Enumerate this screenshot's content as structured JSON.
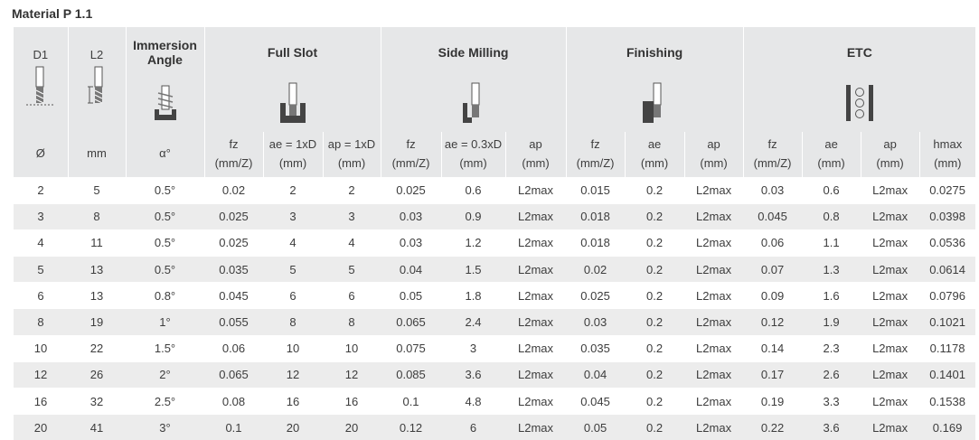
{
  "title": "Material P 1.1",
  "header": {
    "d1": "D1",
    "l2": "L2",
    "immersion": [
      "Immersion",
      "Angle"
    ],
    "groups": [
      "Full Slot",
      "Side Milling",
      "Finishing",
      "ETC"
    ],
    "units": [
      [
        "Ø"
      ],
      [
        "mm"
      ],
      [
        "α°"
      ],
      [
        "fz",
        "(mm/Z)"
      ],
      [
        "ae = 1xD",
        "(mm)"
      ],
      [
        "ap = 1xD",
        "(mm)"
      ],
      [
        "fz",
        "(mm/Z)"
      ],
      [
        "ae = 0.3xD",
        "(mm)"
      ],
      [
        "ap",
        "(mm)"
      ],
      [
        "fz",
        "(mm/Z)"
      ],
      [
        "ae",
        "(mm)"
      ],
      [
        "ap",
        "(mm)"
      ],
      [
        "fz",
        "(mm/Z)"
      ],
      [
        "ae",
        "(mm)"
      ],
      [
        "ap",
        "(mm)"
      ],
      [
        "hmax",
        "(mm)"
      ]
    ]
  },
  "rows": [
    [
      "2",
      "5",
      "0.5°",
      "0.02",
      "2",
      "2",
      "0.025",
      "0.6",
      "L2max",
      "0.015",
      "0.2",
      "L2max",
      "0.03",
      "0.6",
      "L2max",
      "0.0275"
    ],
    [
      "3",
      "8",
      "0.5°",
      "0.025",
      "3",
      "3",
      "0.03",
      "0.9",
      "L2max",
      "0.018",
      "0.2",
      "L2max",
      "0.045",
      "0.8",
      "L2max",
      "0.0398"
    ],
    [
      "4",
      "11",
      "0.5°",
      "0.025",
      "4",
      "4",
      "0.03",
      "1.2",
      "L2max",
      "0.018",
      "0.2",
      "L2max",
      "0.06",
      "1.1",
      "L2max",
      "0.0536"
    ],
    [
      "5",
      "13",
      "0.5°",
      "0.035",
      "5",
      "5",
      "0.04",
      "1.5",
      "L2max",
      "0.02",
      "0.2",
      "L2max",
      "0.07",
      "1.3",
      "L2max",
      "0.0614"
    ],
    [
      "6",
      "13",
      "0.8°",
      "0.045",
      "6",
      "6",
      "0.05",
      "1.8",
      "L2max",
      "0.025",
      "0.2",
      "L2max",
      "0.09",
      "1.6",
      "L2max",
      "0.0796"
    ],
    [
      "8",
      "19",
      "1°",
      "0.055",
      "8",
      "8",
      "0.065",
      "2.4",
      "L2max",
      "0.03",
      "0.2",
      "L2max",
      "0.12",
      "1.9",
      "L2max",
      "0.1021"
    ],
    [
      "10",
      "22",
      "1.5°",
      "0.06",
      "10",
      "10",
      "0.075",
      "3",
      "L2max",
      "0.035",
      "0.2",
      "L2max",
      "0.14",
      "2.3",
      "L2max",
      "0.1178"
    ],
    [
      "12",
      "26",
      "2°",
      "0.065",
      "12",
      "12",
      "0.085",
      "3.6",
      "L2max",
      "0.04",
      "0.2",
      "L2max",
      "0.17",
      "2.6",
      "L2max",
      "0.1401"
    ],
    [
      "16",
      "32",
      "2.5°",
      "0.08",
      "16",
      "16",
      "0.1",
      "4.8",
      "L2max",
      "0.045",
      "0.2",
      "L2max",
      "0.19",
      "3.3",
      "L2max",
      "0.1538"
    ],
    [
      "20",
      "41",
      "3°",
      "0.1",
      "20",
      "20",
      "0.12",
      "6",
      "L2max",
      "0.05",
      "0.2",
      "L2max",
      "0.22",
      "3.6",
      "L2max",
      "0.169"
    ]
  ],
  "icons": [
    "end-mill-d1-icon",
    "end-mill-l2-icon",
    "immersion-angle-icon",
    "full-slot-icon",
    "side-milling-icon",
    "finishing-icon",
    "etc-icon"
  ]
}
